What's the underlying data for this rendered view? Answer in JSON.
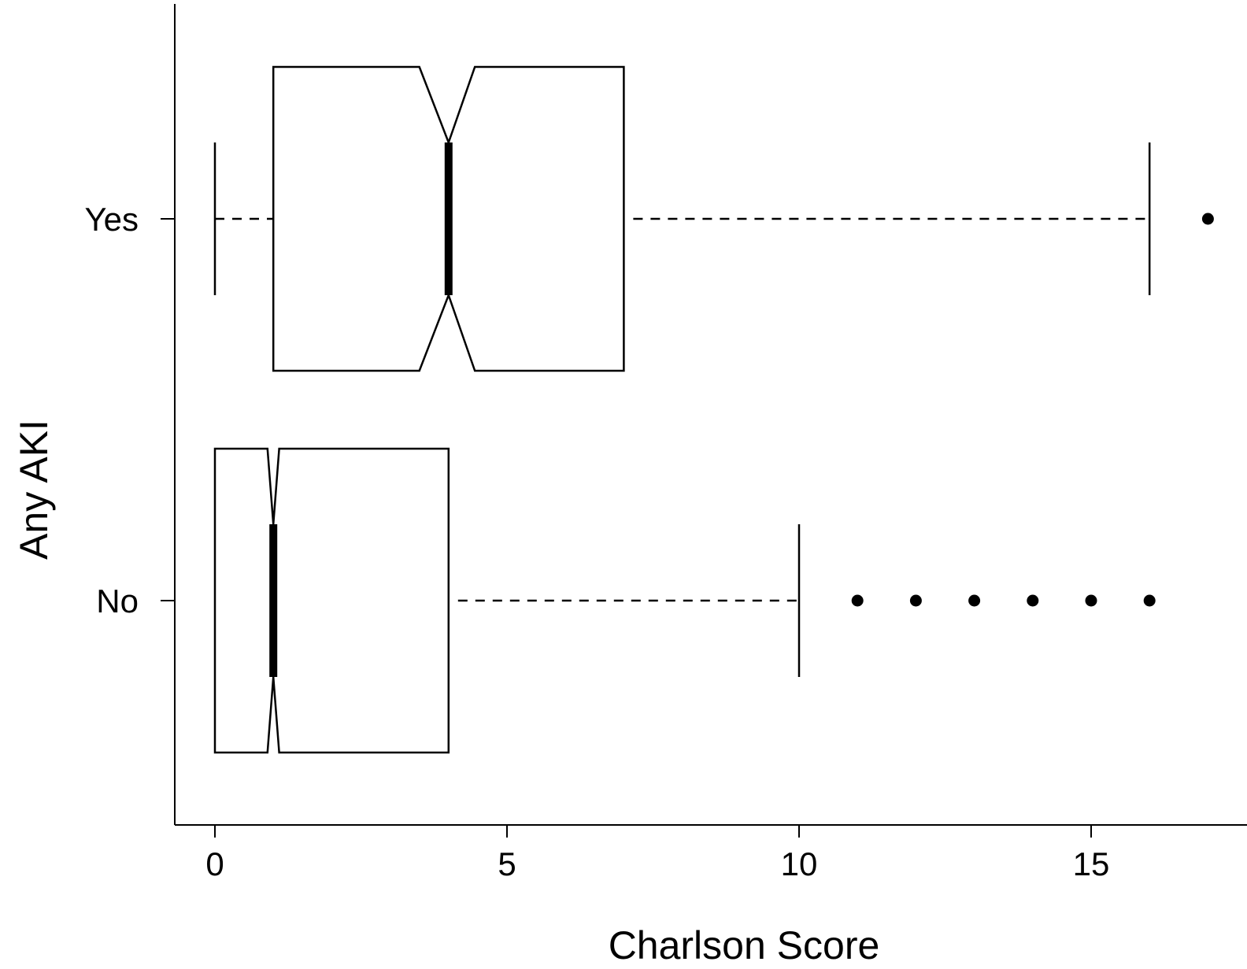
{
  "chart_data": {
    "type": "boxplot",
    "orientation": "horizontal",
    "notched": true,
    "title": "",
    "xlabel": "Charlson Score",
    "ylabel": "Any AKI",
    "xlim": [
      -0.7,
      17.6
    ],
    "xticks": [
      0,
      5,
      10,
      15
    ],
    "xtick_labels": [
      "0",
      "5",
      "10",
      "15"
    ],
    "categories": [
      "Yes",
      "No"
    ],
    "boxes": [
      {
        "category": "Yes",
        "whisker_low": 0,
        "q1": 1,
        "median": 4,
        "q3": 7,
        "whisker_high": 16,
        "notch_low": 3.5,
        "notch_high": 4.45,
        "outliers": [
          17
        ]
      },
      {
        "category": "No",
        "whisker_low": 0,
        "q1": 0,
        "median": 1,
        "q3": 4,
        "whisker_high": 10,
        "notch_low": 0.9,
        "notch_high": 1.1,
        "outliers": [
          11,
          12,
          13,
          14,
          15,
          16
        ]
      }
    ],
    "grid": false,
    "legend": "none",
    "colors": {
      "stroke": "#000000",
      "fill": "#ffffff"
    }
  }
}
